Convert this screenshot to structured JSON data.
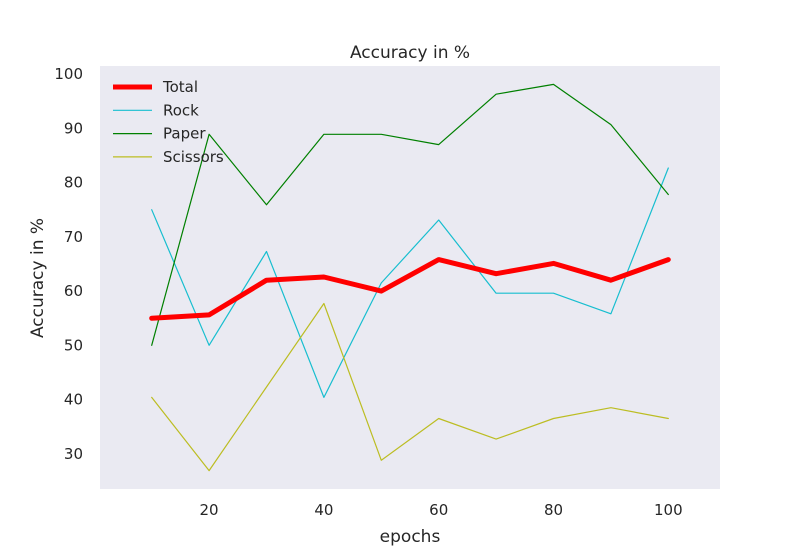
{
  "chart_data": {
    "type": "line",
    "title": "Accuracy in %",
    "xlabel": "epochs",
    "ylabel": "Accuracy in %",
    "xlim": [
      1,
      109
    ],
    "ylim": [
      23.5,
      101.5
    ],
    "x": [
      10,
      20,
      30,
      40,
      50,
      60,
      70,
      80,
      90,
      100
    ],
    "xticks": [
      "20",
      "40",
      "60",
      "80",
      "100"
    ],
    "yticks": [
      "30",
      "40",
      "50",
      "60",
      "70",
      "80",
      "90",
      "100"
    ],
    "grid": false,
    "legend_position": "top-left",
    "background": "#eaeaf2",
    "series": [
      {
        "name": "Total",
        "color": "#ff0000",
        "values": [
          55.0,
          55.6,
          62.0,
          62.6,
          60.0,
          65.8,
          63.2,
          65.1,
          62.0,
          65.8
        ]
      },
      {
        "name": "Rock",
        "color": "#17becf",
        "values": [
          75.0,
          50.0,
          67.3,
          40.4,
          61.5,
          73.1,
          59.6,
          59.6,
          55.8,
          82.7
        ]
      },
      {
        "name": "Paper",
        "color": "#008000",
        "values": [
          50.0,
          88.9,
          75.9,
          88.9,
          88.9,
          87.0,
          96.3,
          98.1,
          90.7,
          77.8
        ]
      },
      {
        "name": "Scissors",
        "color": "#bcbd22",
        "values": [
          40.4,
          26.9,
          42.3,
          57.7,
          28.8,
          36.5,
          32.7,
          36.5,
          38.5,
          36.5
        ]
      }
    ]
  }
}
